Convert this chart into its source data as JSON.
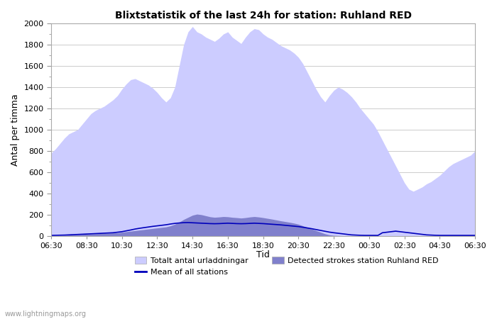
{
  "title": "Blixtstatistik of the last 24h for station: Ruhland RED",
  "ylabel": "Antal per timma",
  "xlabel": "Tid",
  "watermark": "www.lightningmaps.org",
  "xlabels": [
    "06:30",
    "08:30",
    "10:30",
    "12:30",
    "14:30",
    "16:30",
    "18:30",
    "20:30",
    "22:30",
    "00:30",
    "02:30",
    "04:30",
    "06:30"
  ],
  "ylim": [
    0,
    2000
  ],
  "yticks": [
    0,
    200,
    400,
    600,
    800,
    1000,
    1200,
    1400,
    1600,
    1800,
    2000
  ],
  "color_total": "#ccccff",
  "color_detected": "#8080cc",
  "color_mean": "#0000bb",
  "background_color": "#ffffff",
  "n_points": 97,
  "total_values": [
    780,
    820,
    870,
    920,
    960,
    980,
    1000,
    1050,
    1100,
    1150,
    1180,
    1200,
    1220,
    1250,
    1280,
    1320,
    1380,
    1430,
    1470,
    1480,
    1460,
    1440,
    1420,
    1390,
    1350,
    1300,
    1260,
    1300,
    1400,
    1600,
    1800,
    1920,
    1970,
    1920,
    1900,
    1870,
    1850,
    1830,
    1860,
    1900,
    1920,
    1870,
    1840,
    1810,
    1870,
    1920,
    1950,
    1940,
    1900,
    1870,
    1850,
    1820,
    1790,
    1770,
    1750,
    1720,
    1680,
    1620,
    1540,
    1460,
    1380,
    1310,
    1260,
    1320,
    1370,
    1400,
    1380,
    1350,
    1310,
    1260,
    1200,
    1150,
    1100,
    1050,
    980,
    900,
    820,
    740,
    660,
    580,
    500,
    440,
    420,
    440,
    460,
    490,
    510,
    540,
    570,
    610,
    650,
    680,
    700,
    720,
    740,
    760,
    800
  ],
  "detected_values": [
    0,
    2,
    3,
    5,
    8,
    10,
    12,
    14,
    16,
    18,
    20,
    22,
    24,
    26,
    28,
    30,
    35,
    40,
    45,
    50,
    55,
    60,
    65,
    70,
    75,
    80,
    85,
    95,
    110,
    130,
    155,
    175,
    195,
    205,
    200,
    190,
    180,
    175,
    178,
    182,
    180,
    175,
    172,
    168,
    172,
    178,
    182,
    178,
    172,
    165,
    158,
    150,
    142,
    135,
    128,
    120,
    110,
    95,
    80,
    65,
    50,
    35,
    20,
    10,
    5,
    3,
    2,
    1,
    0,
    0,
    0,
    0,
    0,
    0,
    0,
    0,
    0,
    0,
    0,
    0,
    0,
    0,
    0,
    0,
    0,
    0,
    0,
    0,
    0,
    0,
    0,
    0,
    0,
    0,
    0,
    0,
    0
  ],
  "mean_values": [
    5,
    6,
    7,
    8,
    10,
    12,
    14,
    16,
    18,
    20,
    22,
    24,
    26,
    28,
    30,
    35,
    40,
    48,
    56,
    65,
    72,
    78,
    84,
    90,
    95,
    100,
    105,
    112,
    118,
    122,
    125,
    126,
    124,
    122,
    120,
    118,
    116,
    115,
    116,
    118,
    120,
    118,
    116,
    115,
    116,
    118,
    120,
    118,
    116,
    113,
    110,
    107,
    104,
    100,
    96,
    92,
    88,
    82,
    75,
    68,
    60,
    52,
    44,
    36,
    30,
    25,
    20,
    15,
    10,
    8,
    6,
    5,
    5,
    5,
    5,
    30,
    35,
    40,
    45,
    40,
    35,
    30,
    25,
    20,
    15,
    10,
    8,
    6,
    5,
    5,
    5,
    5,
    5,
    5,
    5,
    5,
    5
  ]
}
